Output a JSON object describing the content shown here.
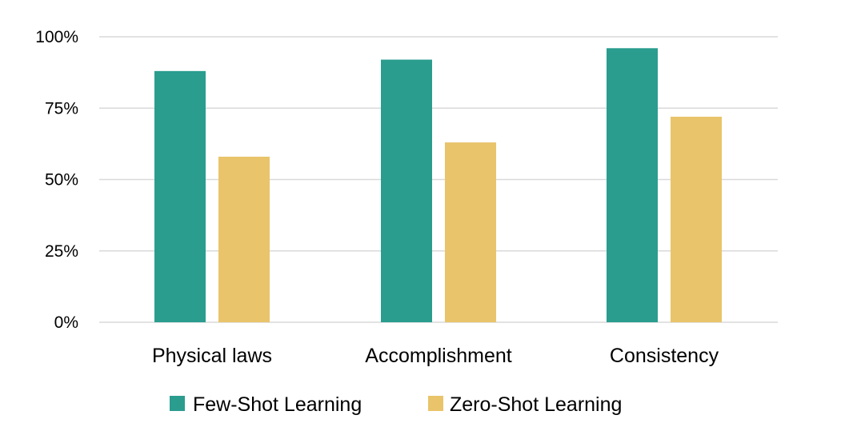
{
  "chart_data": {
    "type": "bar",
    "categories": [
      "Physical laws",
      "Accomplishment",
      "Consistency"
    ],
    "series": [
      {
        "name": "Few-Shot Learning",
        "values": [
          88,
          92,
          96
        ],
        "color": "#2a9d8f"
      },
      {
        "name": "Zero-Shot Learning",
        "values": [
          58,
          63,
          72
        ],
        "color": "#e9c46a"
      }
    ],
    "y_ticks": [
      {
        "value": 0,
        "label": "0%"
      },
      {
        "value": 25,
        "label": "25%"
      },
      {
        "value": 50,
        "label": "50%"
      },
      {
        "value": 75,
        "label": "75%"
      },
      {
        "value": 100,
        "label": "100%"
      }
    ],
    "ylim": [
      0,
      100
    ],
    "grid": true,
    "gridline_color": "#d9d9d9",
    "legend_position": "bottom",
    "title": "",
    "xlabel": "",
    "ylabel": ""
  }
}
